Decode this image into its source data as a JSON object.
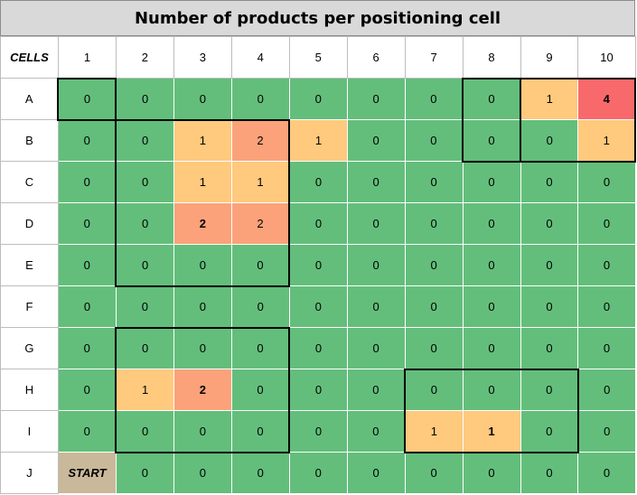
{
  "title": "Number of products per positioning cell",
  "corner_label": "CELLS",
  "columns": [
    "1",
    "2",
    "3",
    "4",
    "5",
    "6",
    "7",
    "8",
    "9",
    "10"
  ],
  "rows": [
    {
      "label": "A",
      "cells": [
        "0",
        "0",
        "0",
        "0",
        "0",
        "0",
        "0",
        "0",
        "1",
        "4"
      ]
    },
    {
      "label": "B",
      "cells": [
        "0",
        "0",
        "1",
        "2",
        "1",
        "0",
        "0",
        "0",
        "0",
        "1"
      ]
    },
    {
      "label": "C",
      "cells": [
        "0",
        "0",
        "1",
        "1",
        "0",
        "0",
        "0",
        "0",
        "0",
        "0"
      ]
    },
    {
      "label": "D",
      "cells": [
        "0",
        "0",
        "2",
        "2",
        "0",
        "0",
        "0",
        "0",
        "0",
        "0"
      ]
    },
    {
      "label": "E",
      "cells": [
        "0",
        "0",
        "0",
        "0",
        "0",
        "0",
        "0",
        "0",
        "0",
        "0"
      ]
    },
    {
      "label": "F",
      "cells": [
        "0",
        "0",
        "0",
        "0",
        "0",
        "0",
        "0",
        "0",
        "0",
        "0"
      ]
    },
    {
      "label": "G",
      "cells": [
        "0",
        "0",
        "0",
        "0",
        "0",
        "0",
        "0",
        "0",
        "0",
        "0"
      ]
    },
    {
      "label": "H",
      "cells": [
        "0",
        "1",
        "2",
        "0",
        "0",
        "0",
        "0",
        "0",
        "0",
        "0"
      ]
    },
    {
      "label": "I",
      "cells": [
        "0",
        "0",
        "0",
        "0",
        "0",
        "0",
        "1",
        "1",
        "0",
        "0"
      ]
    },
    {
      "label": "J",
      "cells": [
        "START",
        "0",
        "0",
        "0",
        "0",
        "0",
        "0",
        "0",
        "0",
        "0"
      ]
    }
  ],
  "colors": {
    "zero": "#63be7b",
    "one": "#ffc97e",
    "two": "#fba27a",
    "four": "#f8696b",
    "start": "#c9b99a"
  }
}
